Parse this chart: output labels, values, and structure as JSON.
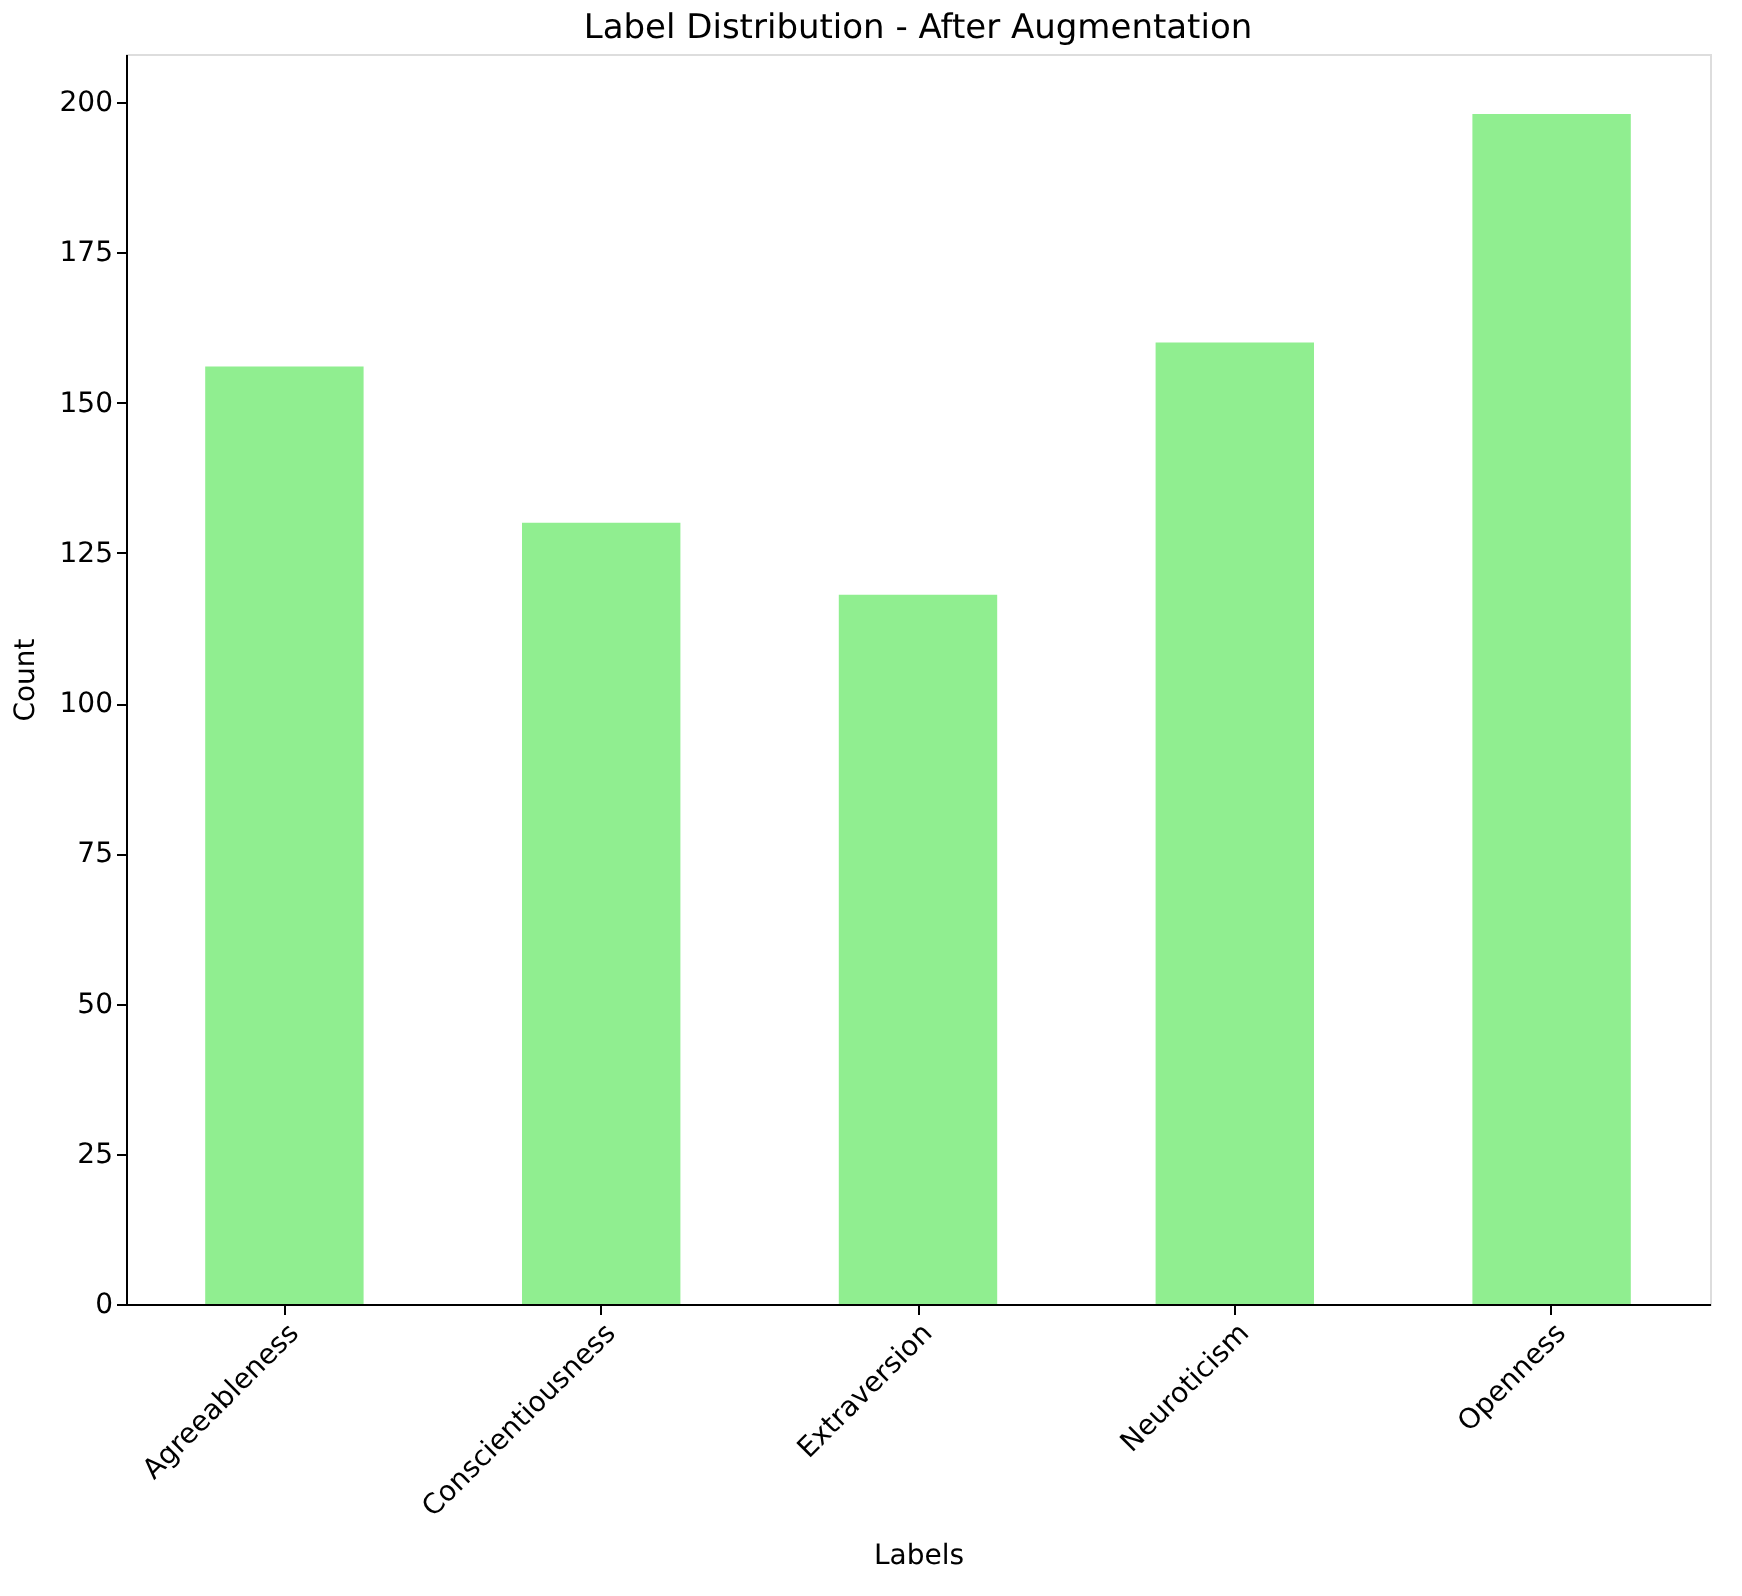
{
  "chart_data": {
    "type": "bar",
    "title": "Label Distribution - After Augmentation",
    "xlabel": "Labels",
    "ylabel": "Count",
    "categories": [
      "Agreeableness",
      "Conscientiousness",
      "Extraversion",
      "Neuroticism",
      "Openness"
    ],
    "values": [
      156,
      130,
      118,
      160,
      198
    ],
    "color": "#90ee90",
    "ylim": [
      0,
      208
    ],
    "yticks": [
      0,
      25,
      50,
      75,
      100,
      125,
      150,
      175,
      200
    ],
    "grid": false
  }
}
